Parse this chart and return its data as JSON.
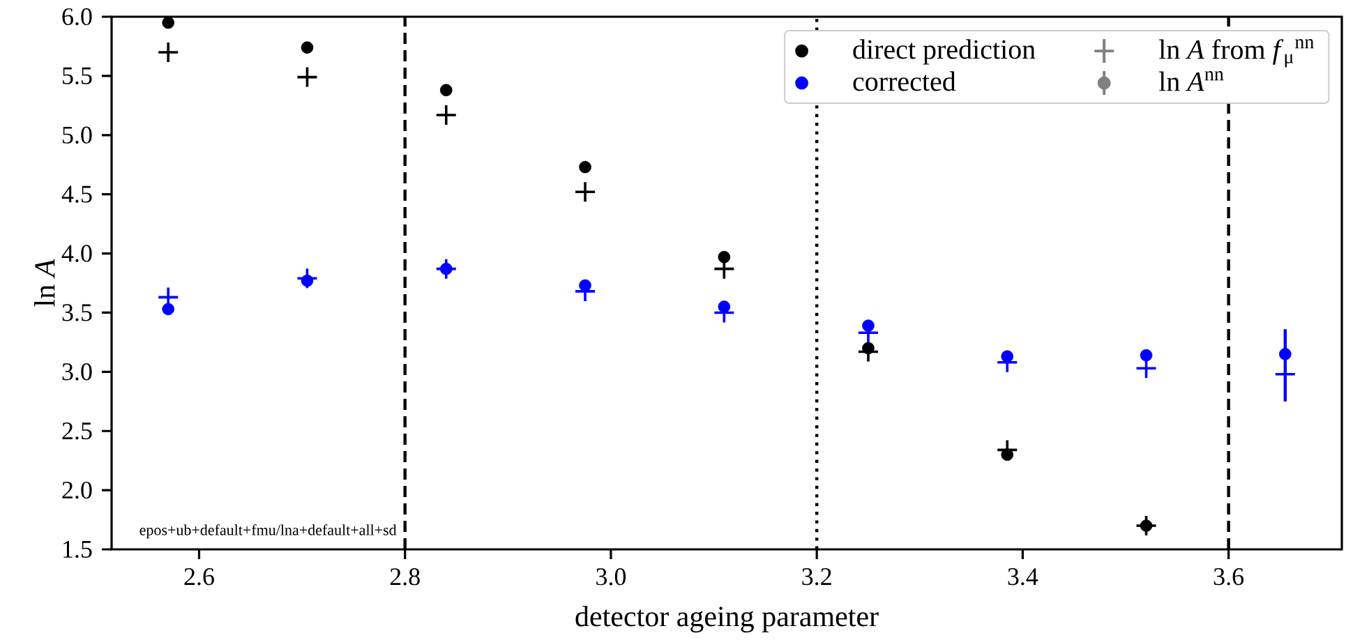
{
  "chart_data": {
    "type": "scatter",
    "xlabel": "detector ageing parameter",
    "ylabel": "ln *A*",
    "x": [
      2.57,
      2.705,
      2.84,
      2.975,
      3.11,
      3.25,
      3.385,
      3.52,
      3.655
    ],
    "series": [
      {
        "name": "direct prediction",
        "color": "#000000",
        "marker": "circle",
        "values": [
          5.95,
          5.74,
          5.38,
          4.73,
          3.97,
          3.2,
          2.3,
          1.7,
          null
        ]
      },
      {
        "name": "ln *A* from *f*$_{μ}$$^{nn}$",
        "color": "#808080",
        "marker": "cross",
        "values": [
          null,
          null,
          null,
          null,
          null,
          null,
          null,
          null,
          null
        ]
      },
      {
        "name": "corrected",
        "color": "#0000ff",
        "marker": "circle",
        "values": [
          3.53,
          3.77,
          3.87,
          3.73,
          3.55,
          3.39,
          3.13,
          3.14,
          3.15
        ]
      },
      {
        "name": "ln *A*$^{nn}$",
        "color": "#808080",
        "marker": "circle",
        "values": [
          null,
          null,
          null,
          null,
          null,
          null,
          null,
          null,
          null
        ]
      },
      {
        "color": "#000000",
        "marker": "cross",
        "values": [
          5.7,
          5.49,
          5.17,
          4.52,
          3.87,
          3.17,
          2.34,
          1.7,
          null
        ]
      },
      {
        "color": "#0000ff",
        "marker": "cross",
        "values": [
          3.63,
          3.79,
          3.87,
          3.68,
          3.5,
          3.33,
          3.08,
          3.03,
          2.98
        ],
        "errors": [
          null,
          null,
          null,
          null,
          null,
          null,
          null,
          null,
          [
            2.75,
            3.36
          ]
        ]
      }
    ],
    "xlim": [
      2.515,
      3.71
    ],
    "ylim": [
      1.5,
      6.0
    ],
    "xticks": [
      2.6,
      2.8,
      {
        "value": 3.0,
        "label": "3.0"
      },
      3.2,
      3.4,
      3.6
    ],
    "yticks": [
      1.5,
      {
        "value": 2.0,
        "label": "2.0"
      },
      2.5,
      {
        "value": 3.0,
        "label": "3.0"
      },
      3.5,
      {
        "value": 4.0,
        "label": "4.0"
      },
      4.5,
      {
        "value": 5.0,
        "label": "5.0"
      },
      5.5,
      {
        "value": 6.0,
        "label": "6.0"
      }
    ],
    "ref_lines": [
      {
        "axis": "x",
        "value": 2.8,
        "color": "#000000",
        "line_style": "dashed"
      },
      {
        "axis": "x",
        "value": 3.2,
        "color": "#000000",
        "line_style": "dotted"
      },
      {
        "axis": "x",
        "value": 3.6,
        "color": "#000000",
        "line_style": "dashed"
      }
    ],
    "annotations": [
      "epos+ub+default+fmu/lna+default+all+sd"
    ],
    "legend": "top right"
  }
}
